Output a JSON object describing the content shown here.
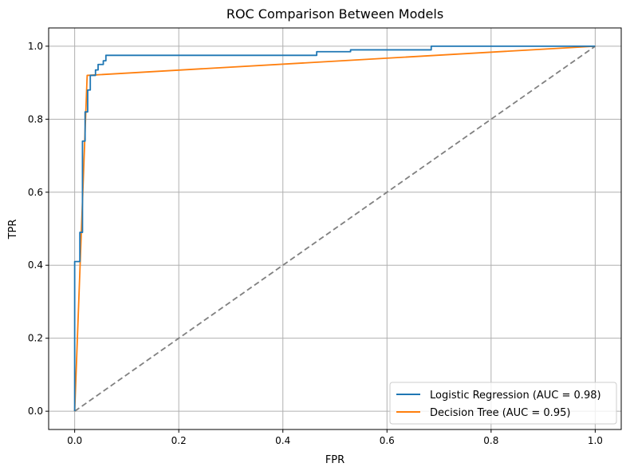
{
  "chart_data": {
    "type": "line",
    "title": "ROC Comparison Between Models",
    "xlabel": "FPR",
    "ylabel": "TPR",
    "xlim": [
      -0.05,
      1.05
    ],
    "ylim": [
      -0.05,
      1.05
    ],
    "xticks": [
      0.0,
      0.2,
      0.4,
      0.6,
      0.8,
      1.0
    ],
    "yticks": [
      0.0,
      0.2,
      0.4,
      0.6,
      0.8,
      1.0
    ],
    "xtick_labels": [
      "0.0",
      "0.2",
      "0.4",
      "0.6",
      "0.8",
      "1.0"
    ],
    "ytick_labels": [
      "0.0",
      "0.2",
      "0.4",
      "0.6",
      "0.8",
      "1.0"
    ],
    "grid": true,
    "legend_position": "lower-right",
    "series": [
      {
        "name": "Logistic Regression (AUC = 0.98)",
        "color": "#1f77b4",
        "style": "step",
        "x": [
          0,
          0,
          0.005,
          0.005,
          0.01,
          0.01,
          0.015,
          0.015,
          0.02,
          0.02,
          0.025,
          0.025,
          0.03,
          0.03,
          0.04,
          0.04,
          0.045,
          0.045,
          0.055,
          0.055,
          0.06,
          0.06,
          0.065,
          0.065,
          0.465,
          0.465,
          0.53,
          0.53,
          0.685,
          0.685,
          1.0,
          1.0
        ],
        "y": [
          0,
          0.41,
          0.41,
          0.41,
          0.41,
          0.49,
          0.49,
          0.74,
          0.74,
          0.82,
          0.82,
          0.88,
          0.88,
          0.92,
          0.92,
          0.935,
          0.935,
          0.95,
          0.95,
          0.96,
          0.96,
          0.975,
          0.975,
          0.975,
          0.975,
          0.985,
          0.985,
          0.99,
          0.99,
          1.0,
          1.0,
          1.0
        ]
      },
      {
        "name": "Decision Tree (AUC = 0.95)",
        "color": "#ff7f0e",
        "style": "line",
        "x": [
          0,
          0.024,
          1.0
        ],
        "y": [
          0,
          0.92,
          1.0
        ]
      },
      {
        "name": "",
        "color": "#808080",
        "style": "dashed",
        "x": [
          0,
          1
        ],
        "y": [
          0,
          1
        ]
      }
    ]
  }
}
